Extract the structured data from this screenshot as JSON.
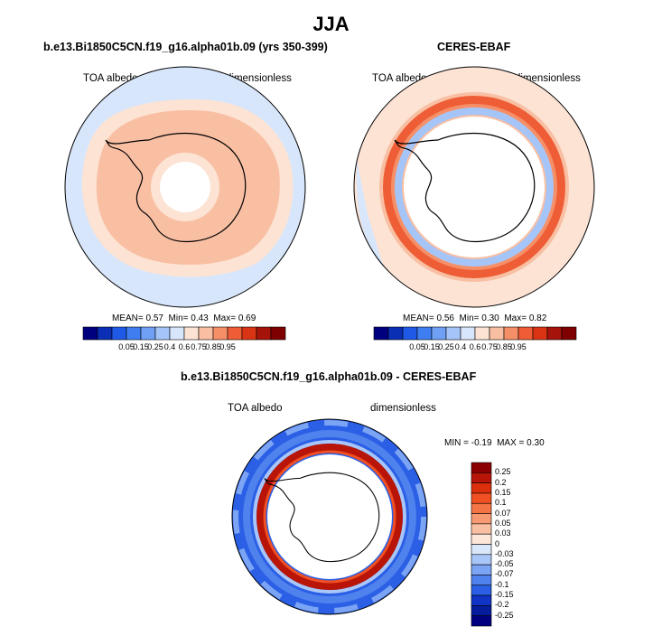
{
  "season": "JJA",
  "panel_left": {
    "title": "b.e13.Bi1850C5CN.f19_g16.alpha01b.09 (yrs 350-399)",
    "variable": "TOA albedo",
    "units": "dimensionless",
    "stats": {
      "mean_label": "MEAN=",
      "mean": "0.57",
      "min_label": "Min=",
      "min": "0.43",
      "max_label": "Max=",
      "max": "0.69"
    }
  },
  "panel_right": {
    "title": "CERES-EBAF",
    "variable": "TOA albedo",
    "units": "dimensionless",
    "stats": {
      "mean_label": "MEAN=",
      "mean": "0.56",
      "min_label": "Min=",
      "min": "0.30",
      "max_label": "Max=",
      "max": "0.82"
    }
  },
  "panel_diff": {
    "title": "b.e13.Bi1850C5CN.f19_g16.alpha01b.09 - CERES-EBAF",
    "variable": "TOA albedo",
    "units": "dimensionless",
    "stats": {
      "min_label": "MIN =",
      "min": "-0.19",
      "max_label": "MAX =",
      "max": "0.30"
    }
  },
  "colorbar_abs": {
    "ticks": [
      "0.05",
      "0.15",
      "0.25",
      "0.4",
      "0.6",
      "0.75",
      "0.85",
      "0.95"
    ],
    "colors": [
      "#00007f",
      "#0a2fb5",
      "#1e5ae6",
      "#3f7ef0",
      "#6fa0f5",
      "#a5c4f8",
      "#d8e6fb",
      "#fce3d4",
      "#f9bfa3",
      "#f58f68",
      "#ee5d35",
      "#d93413",
      "#a5130a",
      "#7f0000"
    ]
  },
  "colorbar_diff": {
    "ticks": [
      "0.25",
      "0.2",
      "0.15",
      "0.1",
      "0.07",
      "0.05",
      "0.03",
      "0",
      "-0.03",
      "-0.05",
      "-0.07",
      "-0.1",
      "-0.15",
      "-0.2",
      "-0.25"
    ],
    "colors": [
      "#8b0000",
      "#b81408",
      "#dc2f0c",
      "#f05022",
      "#f47446",
      "#f79a72",
      "#f9bfa3",
      "#fde6d8",
      "#d9e7fb",
      "#a9c6f8",
      "#7ba4f4",
      "#5082ee",
      "#2a5fe6",
      "#1034c6",
      "#051d9c",
      "#000080"
    ]
  }
}
